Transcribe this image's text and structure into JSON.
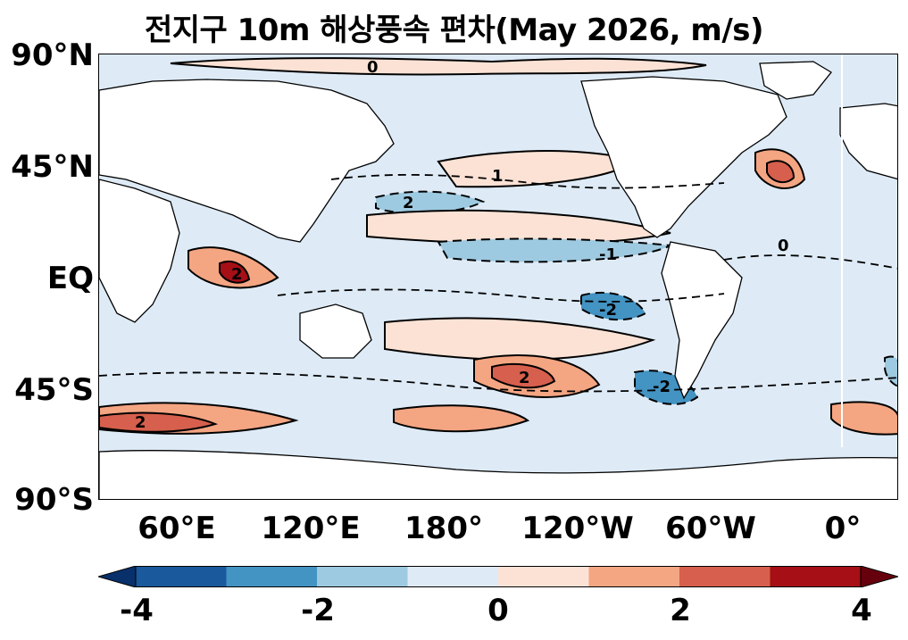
{
  "title": "전지구 10m 해상풍속 편차(May 2026, m/s)",
  "y_axis": {
    "ticks": [
      {
        "label": "90°N",
        "lat": 90
      },
      {
        "label": "45°N",
        "lat": 45
      },
      {
        "label": "EQ",
        "lat": 0
      },
      {
        "label": "45°S",
        "lat": -45
      },
      {
        "label": "90°S",
        "lat": -90
      }
    ]
  },
  "x_axis": {
    "ticks": [
      {
        "label": "60°E",
        "lon": 60
      },
      {
        "label": "120°E",
        "lon": 120
      },
      {
        "label": "180°",
        "lon": 180
      },
      {
        "label": "120°W",
        "lon": 240
      },
      {
        "label": "60°W",
        "lon": 300
      },
      {
        "label": "0°",
        "lon": 360
      }
    ]
  },
  "map": {
    "lon_range": [
      30,
      390
    ],
    "lat_range": [
      -90,
      90
    ],
    "contour_labels": [
      "0",
      "1",
      "-1",
      "2",
      "-2"
    ]
  },
  "colorbar": {
    "min": -4,
    "max": 4,
    "tick_labels": [
      {
        "label": "-4",
        "value": -4
      },
      {
        "label": "-2",
        "value": -2
      },
      {
        "label": "0",
        "value": 0
      },
      {
        "label": "2",
        "value": 2
      },
      {
        "label": "4",
        "value": 4
      }
    ],
    "colors": [
      "#08306b",
      "#1a5a9c",
      "#4393c3",
      "#9ecae1",
      "#deebf7",
      "#fbe2d5",
      "#f4a582",
      "#d6604d",
      "#a50f15",
      "#67000d"
    ]
  }
}
